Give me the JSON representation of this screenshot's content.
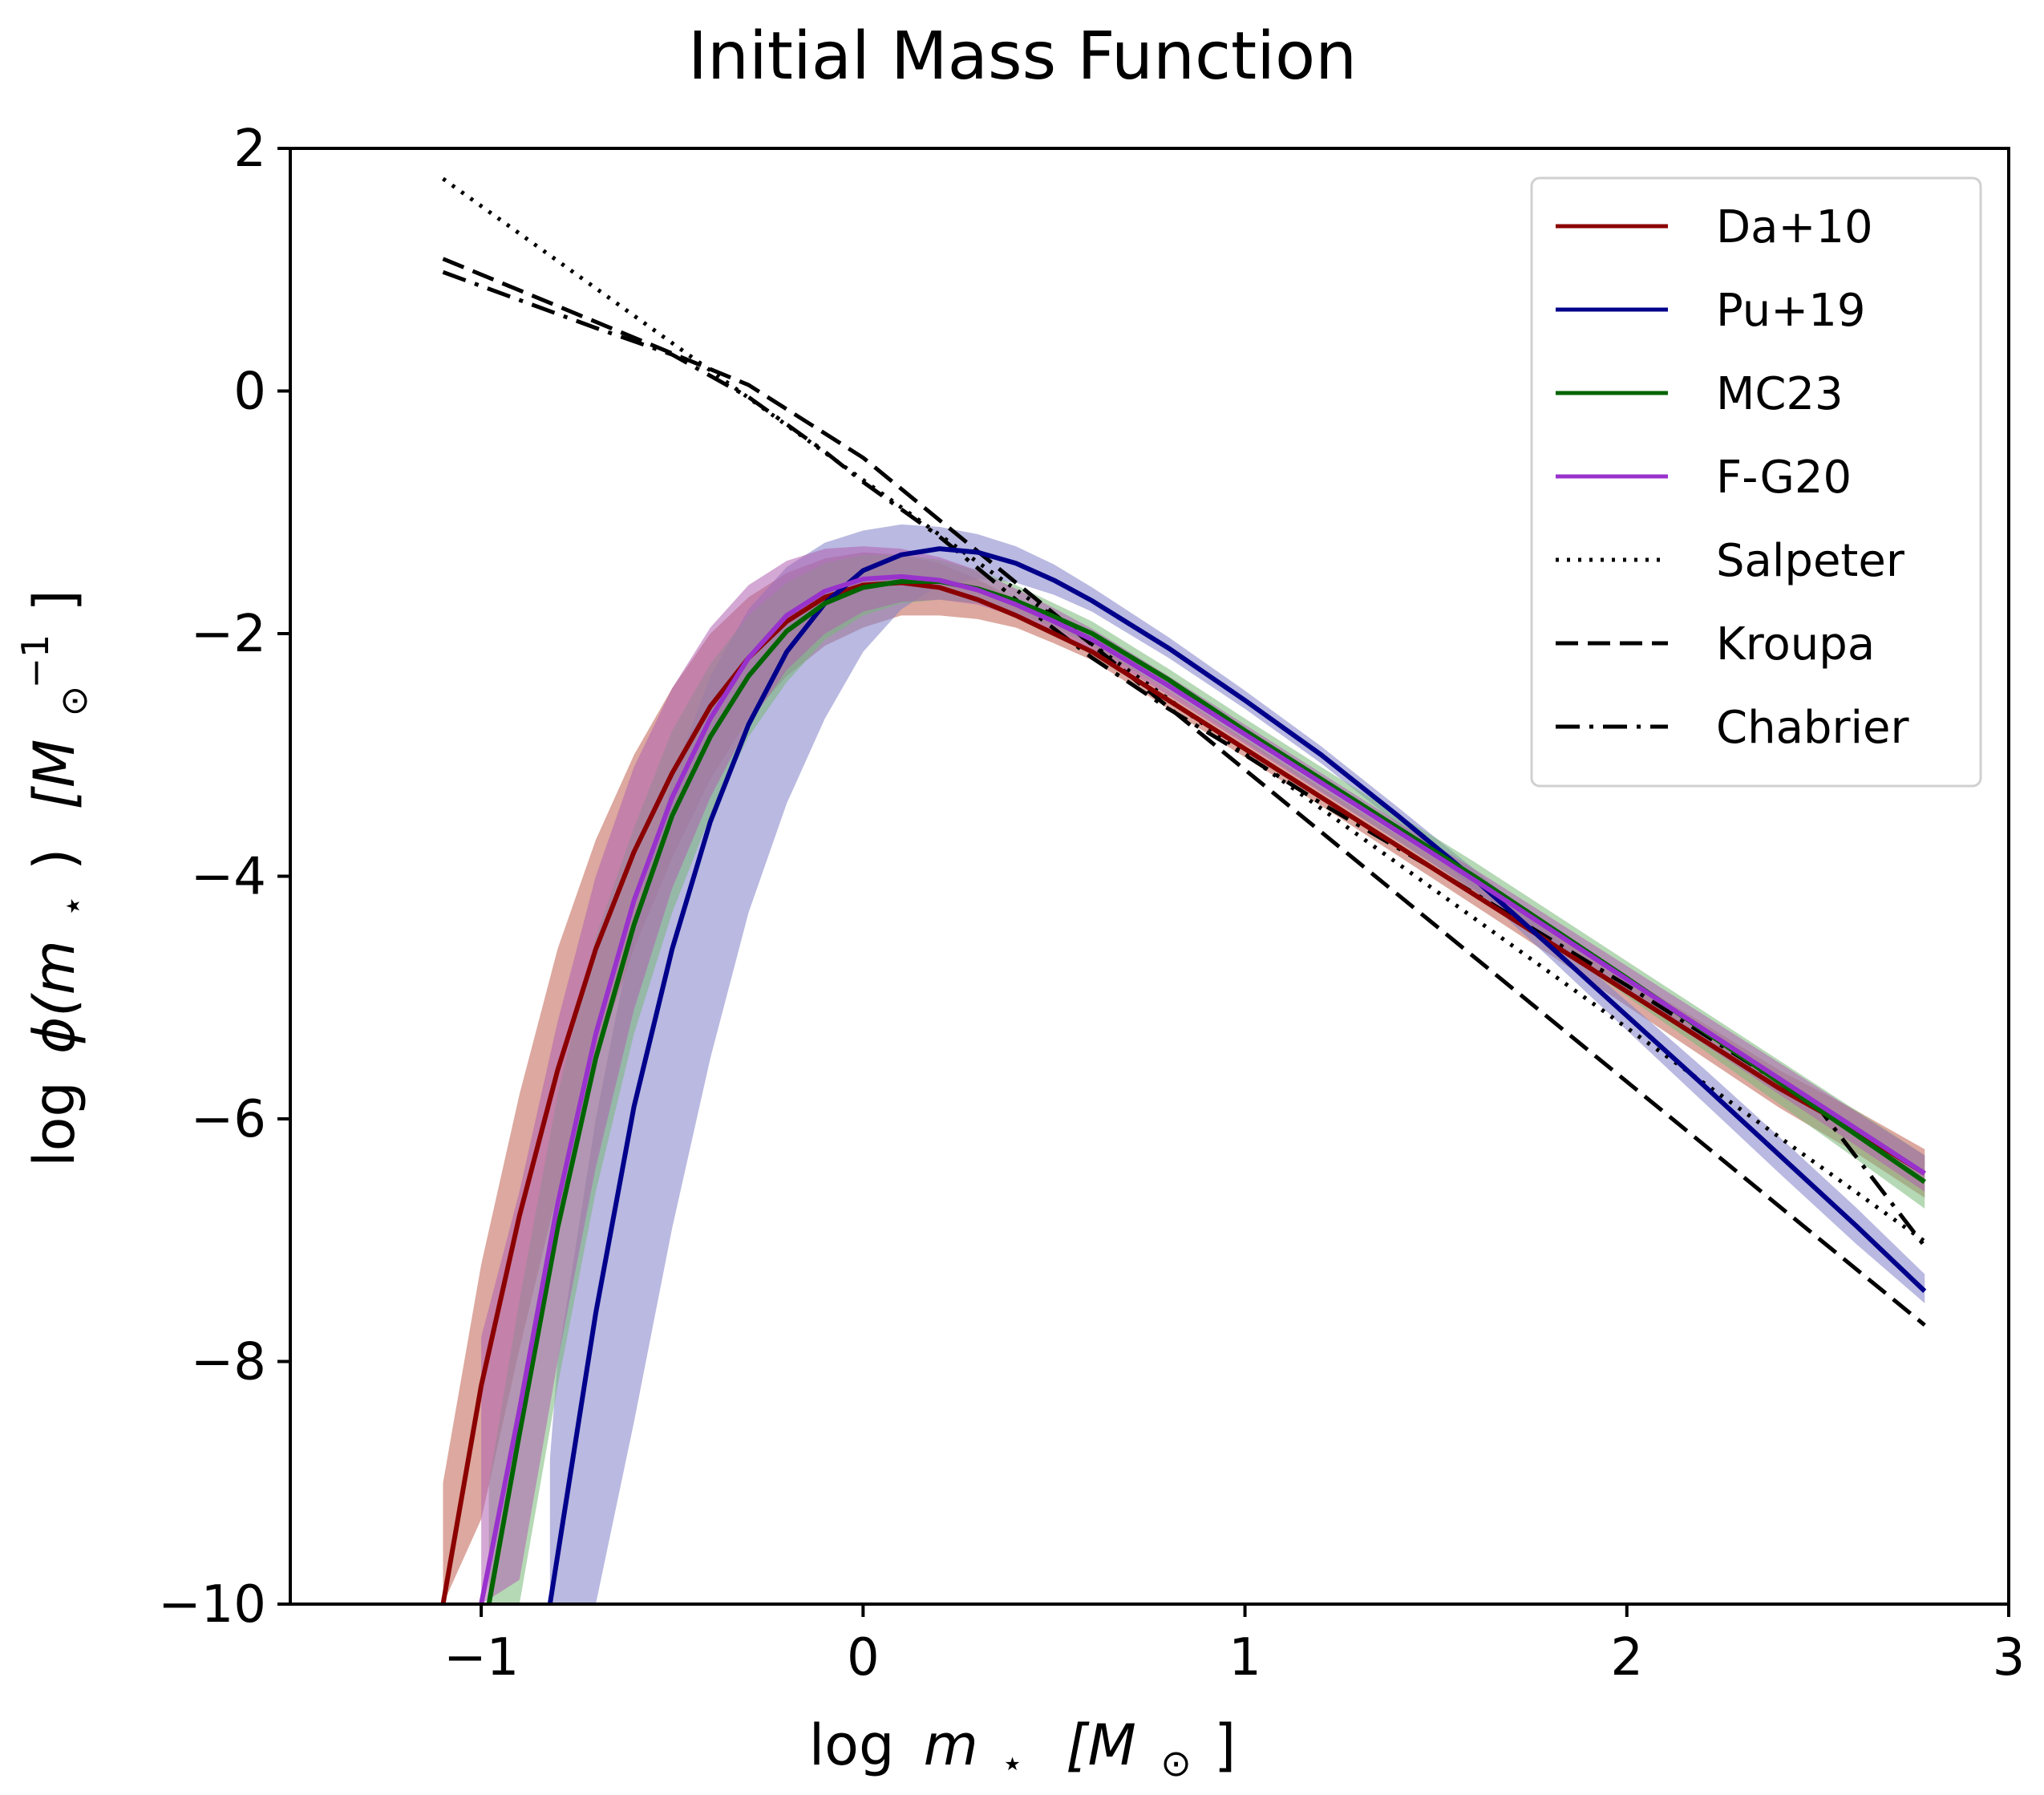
{
  "chart_data": {
    "type": "line",
    "title": "Initial Mass Function",
    "xlabel_parts": [
      "log",
      "m",
      "⋆",
      "[M",
      "⊙",
      "]"
    ],
    "ylabel_parts": [
      "log",
      "ϕ(m",
      "⋆",
      ")",
      "[M",
      "⊙",
      "−1",
      "]"
    ],
    "xlim": [
      -1.5,
      3.0
    ],
    "ylim": [
      -10,
      2
    ],
    "xticks": [
      -1,
      0,
      1,
      2,
      3
    ],
    "xtick_labels": [
      "−1",
      "0",
      "1",
      "2",
      "3"
    ],
    "yticks": [
      -10,
      -8,
      -6,
      -4,
      -2,
      0,
      2
    ],
    "ytick_labels": [
      "−10",
      "−8",
      "−6",
      "−4",
      "−2",
      "0",
      "2"
    ],
    "legend_position": "top-right",
    "series": [
      {
        "name": "Da+10",
        "style": "solid",
        "color": "#8b0000",
        "band_color": "#c06050",
        "x": [
          -1.1,
          -1.0,
          -0.9,
          -0.8,
          -0.7,
          -0.6,
          -0.5,
          -0.4,
          -0.3,
          -0.2,
          -0.1,
          0.0,
          0.1,
          0.2,
          0.3,
          0.4,
          0.5,
          0.6,
          0.8,
          1.0,
          1.2,
          1.4,
          1.6,
          1.8,
          2.0,
          2.2,
          2.4,
          2.6,
          2.78
        ],
        "y": [
          -10.0,
          -8.2,
          -6.8,
          -5.6,
          -4.6,
          -3.8,
          -3.15,
          -2.6,
          -2.2,
          -1.9,
          -1.7,
          -1.6,
          -1.58,
          -1.62,
          -1.72,
          -1.85,
          -2.0,
          -2.15,
          -2.55,
          -2.95,
          -3.35,
          -3.75,
          -4.15,
          -4.55,
          -4.95,
          -5.35,
          -5.75,
          -6.1,
          -6.45
        ],
        "lower": [
          -10.0,
          -9.3,
          -7.9,
          -6.6,
          -5.5,
          -4.6,
          -3.85,
          -3.2,
          -2.7,
          -2.35,
          -2.1,
          -1.95,
          -1.85,
          -1.85,
          -1.88,
          -1.95,
          -2.08,
          -2.22,
          -2.62,
          -3.02,
          -3.42,
          -3.83,
          -4.24,
          -4.65,
          -5.07,
          -5.49,
          -5.91,
          -6.28,
          -6.65
        ],
        "upper": [
          -9.0,
          -7.2,
          -5.8,
          -4.6,
          -3.7,
          -3.0,
          -2.45,
          -2.0,
          -1.7,
          -1.5,
          -1.38,
          -1.33,
          -1.35,
          -1.42,
          -1.55,
          -1.72,
          -1.9,
          -2.07,
          -2.47,
          -2.87,
          -3.27,
          -3.66,
          -4.05,
          -4.44,
          -4.83,
          -5.21,
          -5.6,
          -5.93,
          -6.25
        ]
      },
      {
        "name": "Pu+19",
        "style": "solid",
        "color": "#00008b",
        "band_color": "#8080c8",
        "x": [
          -0.82,
          -0.8,
          -0.7,
          -0.6,
          -0.5,
          -0.4,
          -0.3,
          -0.2,
          -0.1,
          0.0,
          0.1,
          0.2,
          0.3,
          0.4,
          0.5,
          0.6,
          0.8,
          1.0,
          1.2,
          1.4,
          1.6,
          1.8,
          2.0,
          2.2,
          2.4,
          2.6,
          2.78
        ],
        "y": [
          -10.0,
          -9.6,
          -7.6,
          -5.9,
          -4.6,
          -3.55,
          -2.75,
          -2.15,
          -1.75,
          -1.48,
          -1.35,
          -1.3,
          -1.33,
          -1.42,
          -1.56,
          -1.73,
          -2.12,
          -2.55,
          -3.0,
          -3.5,
          -4.02,
          -4.58,
          -5.15,
          -5.72,
          -6.3,
          -6.88,
          -7.42
        ],
        "lower": [
          -10.0,
          -10.0,
          -10.0,
          -8.5,
          -6.9,
          -5.5,
          -4.3,
          -3.4,
          -2.7,
          -2.15,
          -1.8,
          -1.6,
          -1.55,
          -1.58,
          -1.68,
          -1.82,
          -2.2,
          -2.62,
          -3.07,
          -3.57,
          -4.1,
          -4.68,
          -5.27,
          -5.86,
          -6.45,
          -7.03,
          -7.52
        ],
        "upper": [
          -8.8,
          -8.0,
          -6.0,
          -4.4,
          -3.2,
          -2.35,
          -1.8,
          -1.45,
          -1.25,
          -1.15,
          -1.1,
          -1.12,
          -1.18,
          -1.28,
          -1.43,
          -1.62,
          -2.03,
          -2.47,
          -2.93,
          -3.43,
          -3.94,
          -4.48,
          -5.03,
          -5.58,
          -6.15,
          -6.73,
          -7.28
        ]
      },
      {
        "name": "MC23",
        "style": "solid",
        "color": "#006400",
        "band_color": "#78b878",
        "x": [
          -0.98,
          -0.9,
          -0.8,
          -0.7,
          -0.6,
          -0.5,
          -0.4,
          -0.3,
          -0.2,
          -0.1,
          0.0,
          0.1,
          0.2,
          0.3,
          0.4,
          0.5,
          0.6,
          0.8,
          1.0,
          1.2,
          1.4,
          1.6,
          1.8,
          2.0,
          2.2,
          2.4,
          2.6,
          2.78
        ],
        "y": [
          -10.0,
          -8.6,
          -6.9,
          -5.5,
          -4.4,
          -3.5,
          -2.85,
          -2.35,
          -1.98,
          -1.75,
          -1.62,
          -1.57,
          -1.57,
          -1.63,
          -1.73,
          -1.86,
          -2.0,
          -2.38,
          -2.8,
          -3.2,
          -3.6,
          -4.0,
          -4.42,
          -4.84,
          -5.27,
          -5.7,
          -6.13,
          -6.52
        ],
        "lower": [
          -10.0,
          -10.0,
          -8.2,
          -6.6,
          -5.3,
          -4.3,
          -3.5,
          -2.85,
          -2.4,
          -2.05,
          -1.85,
          -1.75,
          -1.72,
          -1.75,
          -1.83,
          -1.95,
          -2.1,
          -2.47,
          -2.89,
          -3.3,
          -3.71,
          -4.12,
          -4.55,
          -4.99,
          -5.43,
          -5.88,
          -6.33,
          -6.74
        ],
        "upper": [
          -9.0,
          -7.5,
          -5.8,
          -4.5,
          -3.6,
          -2.8,
          -2.25,
          -1.85,
          -1.58,
          -1.42,
          -1.35,
          -1.35,
          -1.39,
          -1.48,
          -1.6,
          -1.75,
          -1.9,
          -2.29,
          -2.7,
          -3.1,
          -3.49,
          -3.88,
          -4.29,
          -4.7,
          -5.11,
          -5.52,
          -5.93,
          -6.3
        ]
      },
      {
        "name": "F-G20",
        "style": "solid",
        "color": "#9932cc",
        "band_color": "#b060b0",
        "x": [
          -1.0,
          -0.9,
          -0.8,
          -0.7,
          -0.6,
          -0.5,
          -0.4,
          -0.3,
          -0.2,
          -0.1,
          0.0,
          0.1,
          0.2,
          0.3,
          0.4,
          0.5,
          0.6,
          0.8,
          1.0,
          1.2,
          1.4,
          1.6,
          1.8,
          2.0,
          2.2,
          2.4,
          2.6,
          2.78
        ],
        "y": [
          -10.0,
          -8.4,
          -6.7,
          -5.3,
          -4.2,
          -3.35,
          -2.7,
          -2.2,
          -1.85,
          -1.65,
          -1.55,
          -1.53,
          -1.56,
          -1.64,
          -1.76,
          -1.9,
          -2.05,
          -2.43,
          -2.83,
          -3.23,
          -3.63,
          -4.03,
          -4.44,
          -4.85,
          -5.26,
          -5.67,
          -6.08,
          -6.45
        ],
        "lower": [
          -10.0,
          -9.8,
          -8.0,
          -6.4,
          -5.1,
          -4.1,
          -3.35,
          -2.75,
          -2.3,
          -2.0,
          -1.82,
          -1.74,
          -1.72,
          -1.76,
          -1.86,
          -1.98,
          -2.13,
          -2.51,
          -2.91,
          -3.31,
          -3.71,
          -4.12,
          -4.54,
          -4.96,
          -5.38,
          -5.8,
          -6.22,
          -6.6
        ],
        "upper": [
          -7.8,
          -6.6,
          -5.2,
          -4.0,
          -3.1,
          -2.45,
          -1.95,
          -1.6,
          -1.4,
          -1.3,
          -1.28,
          -1.3,
          -1.37,
          -1.48,
          -1.63,
          -1.79,
          -1.96,
          -2.35,
          -2.75,
          -3.15,
          -3.55,
          -3.94,
          -4.34,
          -4.74,
          -5.14,
          -5.54,
          -5.94,
          -6.3
        ]
      },
      {
        "name": "Salpeter",
        "style": "dotted",
        "color": "#000000",
        "x": [
          -1.1,
          2.78
        ],
        "y": [
          1.75,
          -7.01
        ]
      },
      {
        "name": "Kroupa",
        "style": "dashed",
        "color": "#000000",
        "x": [
          -1.1,
          -0.3,
          0.0,
          2.78
        ],
        "y": [
          1.09,
          0.05,
          -0.55,
          -7.7
        ]
      },
      {
        "name": "Chabrier",
        "style": "dashdot",
        "color": "#000000",
        "x": [
          -1.1,
          -0.9,
          -0.7,
          -0.5,
          -0.3,
          -0.1,
          0.0,
          0.2,
          0.4,
          0.6,
          0.8,
          1.0,
          1.2,
          1.5,
          2.0,
          2.5,
          2.78
        ],
        "y": [
          0.98,
          0.75,
          0.52,
          0.3,
          -0.05,
          -0.5,
          -0.75,
          -1.2,
          -1.72,
          -2.2,
          -2.62,
          -3.0,
          -3.4,
          -3.95,
          -4.9,
          -5.9,
          -7.05
        ]
      }
    ]
  }
}
